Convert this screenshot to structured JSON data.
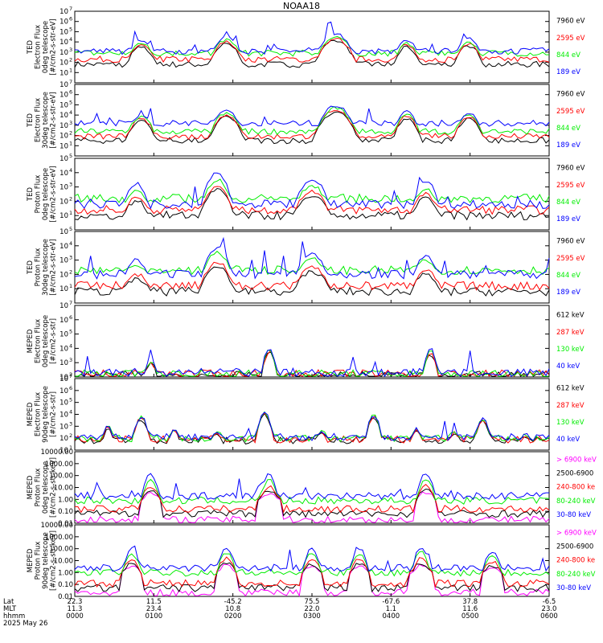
{
  "figure": {
    "title": "NOAA18",
    "date_label": "2025 May 26"
  },
  "colors": {
    "black": "#000000",
    "red": "#ff0000",
    "green": "#00ee00",
    "blue": "#0000ff",
    "magenta": "#ff00ff"
  },
  "chart_data": [
    {
      "type": "line",
      "ylabel_lines": [
        "TED",
        "Electron Flux",
        "0deg telescope",
        "[#/cm2-s-str-eV]"
      ],
      "yscale": "log",
      "ylim": [
        1,
        10000000
      ],
      "y_ticks": [
        "10^1",
        "10^2",
        "10^3",
        "10^4",
        "10^5",
        "10^6",
        "10^7"
      ],
      "legend": [
        "7960 eV",
        "2595 eV",
        "844 eV",
        "189 eV"
      ],
      "legend_colors": [
        "black",
        "red",
        "green",
        "blue"
      ],
      "series_colors": [
        "black",
        "red",
        "green",
        "blue"
      ],
      "peaks": [
        [
          14,
          4.2,
          9
        ],
        [
          32,
          4.5,
          10
        ],
        [
          55,
          4.8,
          12
        ],
        [
          70,
          4.2,
          8
        ],
        [
          83,
          4.3,
          9
        ]
      ],
      "base": [
        1.8,
        2.3,
        2.9,
        3.1
      ],
      "drop": [
        0.7,
        0.5,
        0.3,
        0
      ]
    },
    {
      "type": "line",
      "ylabel_lines": [
        "TED",
        "Electron Flux",
        "30deg telescope",
        "[#/cm2-s-str-eV]"
      ],
      "yscale": "log",
      "ylim": [
        1,
        10000000
      ],
      "y_ticks": [
        "10^1",
        "10^2",
        "10^3",
        "10^4",
        "10^5",
        "10^6",
        "10^7"
      ],
      "legend": [
        "7960 eV",
        "2595 eV",
        "844 eV",
        "189 eV"
      ],
      "legend_colors": [
        "black",
        "red",
        "green",
        "blue"
      ],
      "series_colors": [
        "black",
        "red",
        "green",
        "blue"
      ],
      "peaks": [
        [
          14,
          4.0,
          9
        ],
        [
          32,
          4.4,
          10
        ],
        [
          55,
          4.9,
          12
        ],
        [
          70,
          4.3,
          8
        ],
        [
          83,
          4.2,
          9
        ]
      ],
      "base": [
        1.5,
        1.9,
        2.4,
        3.2
      ],
      "drop": [
        0.6,
        0.4,
        0.2,
        0
      ]
    },
    {
      "type": "line",
      "ylabel_lines": [
        "TED",
        "Proton Flux",
        "0deg telescope",
        "[#/cm2-s-str-eV]"
      ],
      "yscale": "log",
      "ylim": [
        1,
        100000
      ],
      "y_ticks": [
        "10^1",
        "10^2",
        "10^3",
        "10^4",
        "10^5"
      ],
      "legend": [
        "7960 eV",
        "2595 eV",
        "844 eV",
        "189 eV"
      ],
      "legend_colors": [
        "black",
        "red",
        "green",
        "blue"
      ],
      "series_colors": [
        "black",
        "red",
        "green",
        "blue"
      ],
      "peaks": [
        [
          13,
          3.2,
          8
        ],
        [
          30,
          4.0,
          9
        ],
        [
          50,
          3.6,
          10
        ],
        [
          74,
          3.4,
          8
        ]
      ],
      "base": [
        1.0,
        1.4,
        2.2,
        1.8
      ],
      "drop": [
        1.2,
        0.9,
        0.5,
        0
      ]
    },
    {
      "type": "line",
      "ylabel_lines": [
        "TED",
        "Proton Flux",
        "30deg telescope",
        "[#/cm2-s-str-eV]"
      ],
      "yscale": "log",
      "ylim": [
        1,
        100000
      ],
      "y_ticks": [
        "10^1",
        "10^2",
        "10^3",
        "10^4",
        "10^5"
      ],
      "legend": [
        "7960 eV",
        "2595 eV",
        "844 eV",
        "189 eV"
      ],
      "legend_colors": [
        "black",
        "red",
        "green",
        "blue"
      ],
      "series_colors": [
        "black",
        "red",
        "green",
        "blue"
      ],
      "peaks": [
        [
          13,
          3.0,
          8
        ],
        [
          30,
          3.9,
          9
        ],
        [
          50,
          3.5,
          10
        ],
        [
          74,
          3.3,
          8
        ]
      ],
      "base": [
        0.8,
        1.2,
        2.3,
        2.0
      ],
      "drop": [
        1.3,
        1.0,
        0.3,
        0
      ]
    },
    {
      "type": "line",
      "ylabel_lines": [
        "MEPED",
        "Electron Flux",
        "0deg telescope",
        "[#/cm2-s-str]"
      ],
      "yscale": "log",
      "ylim": [
        100,
        10000000
      ],
      "y_ticks": [
        "10^2",
        "10^3",
        "10^4",
        "10^5",
        "10^6",
        "10^7"
      ],
      "legend": [
        "612 keV",
        "287 keV",
        "130 keV",
        "40 keV"
      ],
      "legend_colors": [
        "black",
        "red",
        "green",
        "blue"
      ],
      "series_colors": [
        "black",
        "red",
        "green",
        "blue"
      ],
      "peaks": [
        [
          16,
          3.2,
          5
        ],
        [
          41,
          4.0,
          5
        ],
        [
          75,
          3.9,
          5
        ]
      ],
      "base": [
        2.1,
        2.2,
        2.2,
        2.3
      ],
      "drop": [
        0.3,
        0.2,
        0.1,
        0
      ]
    },
    {
      "type": "line",
      "ylabel_lines": [
        "MEPED",
        "Electron Flux",
        "90deg telescope",
        "[#/cm2-s-str]"
      ],
      "yscale": "log",
      "ylim": [
        10,
        10000000
      ],
      "y_ticks": [
        "10^1",
        "10^2",
        "10^3",
        "10^4",
        "10^5",
        "10^6",
        "10^7"
      ],
      "legend": [
        "612 keV",
        "287 keV",
        "130 keV",
        "40 keV"
      ],
      "legend_colors": [
        "black",
        "red",
        "green",
        "blue"
      ],
      "series_colors": [
        "black",
        "red",
        "green",
        "blue"
      ],
      "peaks": [
        [
          7,
          3.0,
          4
        ],
        [
          14,
          3.8,
          5
        ],
        [
          21,
          2.8,
          4
        ],
        [
          30,
          2.6,
          4
        ],
        [
          40,
          4.2,
          5
        ],
        [
          52,
          2.7,
          4
        ],
        [
          63,
          3.9,
          5
        ],
        [
          72,
          2.8,
          4
        ],
        [
          80,
          2.6,
          4
        ],
        [
          86,
          3.6,
          5
        ],
        [
          95,
          2.4,
          3
        ]
      ],
      "base": [
        1.8,
        1.9,
        2.0,
        2.1
      ],
      "drop": [
        0.2,
        0.1,
        0,
        0
      ]
    },
    {
      "type": "line",
      "ylabel_lines": [
        "MEPED",
        "Proton Flux",
        "0deg telescope",
        "[#/cm2-s-str-keV]"
      ],
      "yscale": "log",
      "ylim": [
        0.01,
        10000
      ],
      "y_ticks": [
        "0.01",
        "0.10",
        "1.00",
        "10.00",
        "100.00",
        "1000.00",
        "10000.00"
      ],
      "legend": [
        "> 6900 keV",
        "2500-6900",
        "240-800 ke",
        "80-240 keV",
        "30-80 keV"
      ],
      "legend_colors": [
        "magenta",
        "black",
        "red",
        "green",
        "blue"
      ],
      "series_colors": [
        "magenta",
        "black",
        "red",
        "green",
        "blue"
      ],
      "peaks": [
        [
          16,
          2.1,
          4
        ],
        [
          41,
          2.1,
          4
        ],
        [
          74,
          2.2,
          4
        ]
      ],
      "base": [
        -1.7,
        -1.2,
        -0.8,
        -0.1,
        0.3
      ],
      "drop": [
        1.6,
        1.4,
        1.0,
        0.5,
        0
      ]
    },
    {
      "type": "line",
      "ylabel_lines": [
        "MEPED",
        "Proton Flux",
        "90deg telescope",
        "[#/cm2-s-str-keV]"
      ],
      "yscale": "log",
      "ylim": [
        0.01,
        10000
      ],
      "y_ticks": [
        "0.01",
        "0.10",
        "1.00",
        "10.00",
        "100.00",
        "1000.00",
        "10000.00"
      ],
      "legend": [
        "> 6900 keV",
        "2500-6900",
        "240-800 ke",
        "80-240 keV",
        "30-80 keV"
      ],
      "legend_colors": [
        "magenta",
        "black",
        "red",
        "green",
        "blue"
      ],
      "series_colors": [
        "magenta",
        "black",
        "red",
        "green",
        "blue"
      ],
      "peaks": [
        [
          12,
          2.0,
          4
        ],
        [
          32,
          2.1,
          4
        ],
        [
          50,
          2.0,
          4
        ],
        [
          60,
          2.0,
          4
        ],
        [
          73,
          2.1,
          4
        ],
        [
          88,
          1.8,
          4
        ]
      ],
      "base": [
        -1.7,
        -1.3,
        -0.9,
        0.0,
        0.4
      ],
      "drop": [
        1.5,
        1.3,
        0.9,
        0.4,
        0
      ]
    }
  ],
  "x_axis": {
    "row_labels": [
      "Lat",
      "MLT",
      "hhmm"
    ],
    "ticks": [
      {
        "lat": "22.3",
        "mlt": "11.3",
        "hhmm": "0000"
      },
      {
        "lat": "11.5",
        "mlt": "23.4",
        "hhmm": "0100"
      },
      {
        "lat": "-45.2",
        "mlt": "10.8",
        "hhmm": "0200"
      },
      {
        "lat": "75.5",
        "mlt": "22.0",
        "hhmm": "0300"
      },
      {
        "lat": "-67.6",
        "mlt": "1.1",
        "hhmm": "0400"
      },
      {
        "lat": "37.8",
        "mlt": "11.6",
        "hhmm": "0500"
      },
      {
        "lat": "-6.5",
        "mlt": "23.0",
        "hhmm": "0600"
      }
    ]
  }
}
